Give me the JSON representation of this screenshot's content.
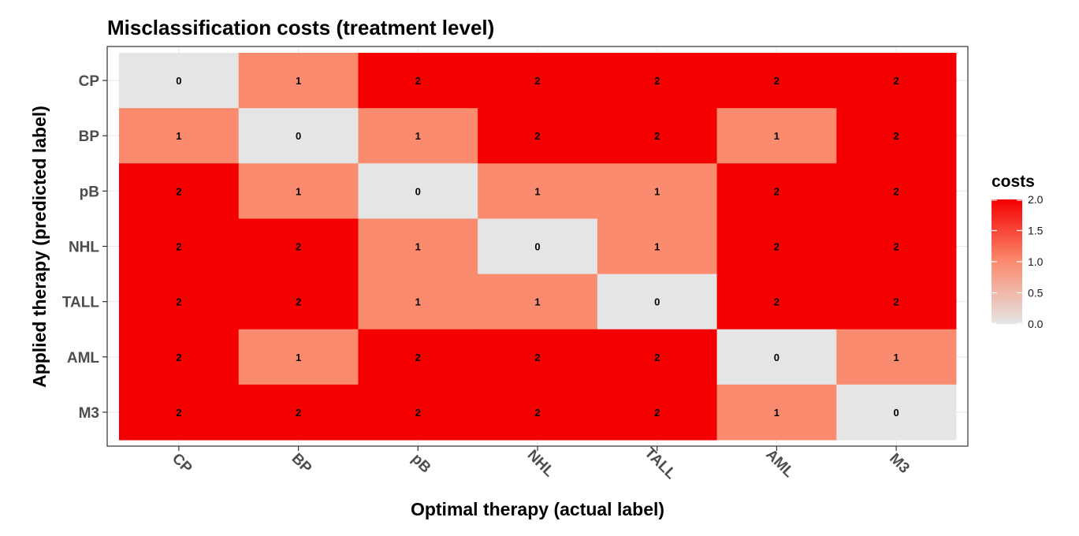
{
  "chart_data": {
    "type": "heatmap",
    "title": "Misclassification costs (treatment level)",
    "xlabel": "Optimal therapy (actual label)",
    "ylabel": "Applied therapy (predicted label)",
    "x_categories": [
      "CP",
      "BP",
      "pB",
      "NHL",
      "TALL",
      "AML",
      "M3"
    ],
    "y_categories": [
      "CP",
      "BP",
      "pB",
      "NHL",
      "TALL",
      "AML",
      "M3"
    ],
    "values": [
      [
        0,
        1,
        2,
        2,
        2,
        2,
        2
      ],
      [
        1,
        0,
        1,
        2,
        2,
        1,
        2
      ],
      [
        2,
        1,
        0,
        1,
        1,
        2,
        2
      ],
      [
        2,
        2,
        1,
        0,
        1,
        2,
        2
      ],
      [
        2,
        2,
        1,
        1,
        0,
        2,
        2
      ],
      [
        2,
        1,
        2,
        2,
        2,
        0,
        1
      ],
      [
        2,
        2,
        2,
        2,
        2,
        1,
        0
      ]
    ],
    "legend": {
      "title": "costs",
      "position": "right",
      "range": [
        0,
        2
      ],
      "ticks": [
        "0.0",
        "0.5",
        "1.0",
        "1.5",
        "2.0"
      ]
    },
    "colors": {
      "low": "#e5e5e5",
      "mid": "#fa8b6e",
      "high": "#f50000"
    },
    "grid": true,
    "x_tick_rotation_deg": 45
  }
}
